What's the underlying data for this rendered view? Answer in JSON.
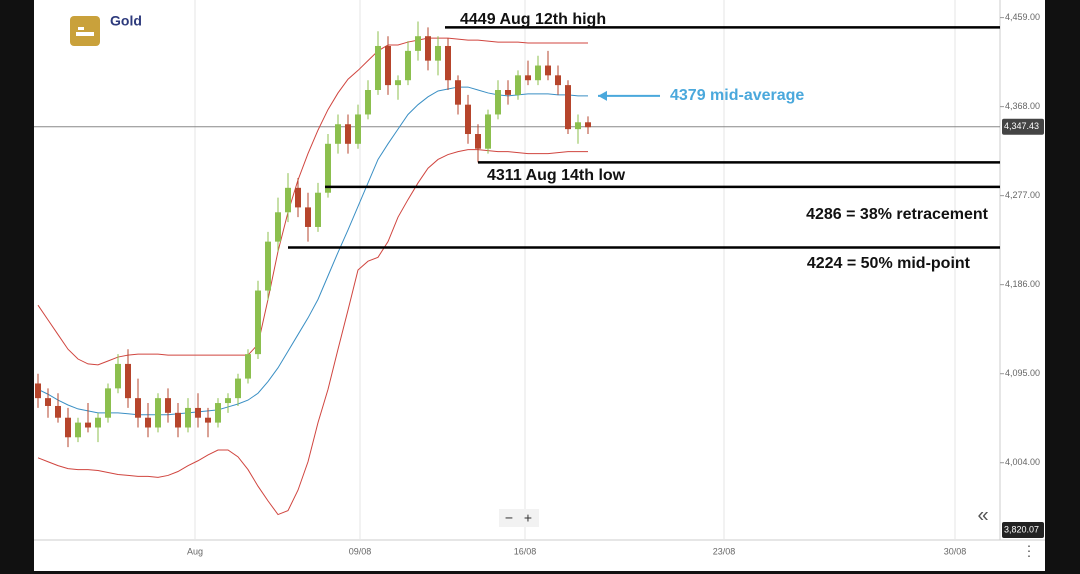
{
  "chart_data": {
    "type": "candlestick",
    "title": "Gold",
    "up_color": "#8cbf4e",
    "down_color": "#b6452c",
    "open": [
      4085,
      4070,
      4062,
      4050,
      4030,
      4045,
      4040,
      4050,
      4080,
      4105,
      4070,
      4050,
      4040,
      4070,
      4055,
      4040,
      4060,
      4050,
      4045,
      4065,
      4070,
      4090,
      4115,
      4180,
      4230,
      4260,
      4285,
      4265,
      4245,
      4280,
      4330,
      4350,
      4330,
      4360,
      4385,
      4430,
      4390,
      4395,
      4425,
      4440,
      4415,
      4430,
      4395,
      4370,
      4340,
      4325,
      4360,
      4385,
      4380,
      4400,
      4395,
      4410,
      4400,
      4390,
      4345,
      4352
    ],
    "high": [
      4095,
      4080,
      4075,
      4060,
      4050,
      4065,
      4055,
      4085,
      4115,
      4120,
      4090,
      4065,
      4075,
      4080,
      4065,
      4070,
      4075,
      4060,
      4070,
      4075,
      4095,
      4120,
      4190,
      4240,
      4275,
      4300,
      4295,
      4280,
      4290,
      4340,
      4360,
      4360,
      4370,
      4395,
      4445,
      4440,
      4400,
      4435,
      4455,
      4449,
      4440,
      4438,
      4400,
      4380,
      4350,
      4365,
      4395,
      4395,
      4405,
      4415,
      4420,
      4425,
      4410,
      4395,
      4360,
      4358
    ],
    "low": [
      4060,
      4050,
      4045,
      4020,
      4025,
      4035,
      4025,
      4045,
      4075,
      4060,
      4040,
      4030,
      4035,
      4045,
      4030,
      4035,
      4040,
      4030,
      4040,
      4055,
      4062,
      4085,
      4110,
      4170,
      4220,
      4250,
      4255,
      4230,
      4240,
      4275,
      4320,
      4320,
      4325,
      4355,
      4380,
      4380,
      4375,
      4390,
      4415,
      4405,
      4400,
      4385,
      4360,
      4330,
      4311,
      4320,
      4355,
      4370,
      4375,
      4390,
      4390,
      4395,
      4380,
      4340,
      4330,
      4340
    ],
    "close": [
      4070,
      4062,
      4050,
      4030,
      4045,
      4040,
      4050,
      4080,
      4105,
      4070,
      4050,
      4040,
      4070,
      4055,
      4040,
      4060,
      4050,
      4045,
      4065,
      4070,
      4090,
      4115,
      4180,
      4230,
      4260,
      4285,
      4265,
      4245,
      4280,
      4330,
      4350,
      4330,
      4360,
      4385,
      4430,
      4390,
      4395,
      4425,
      4440,
      4415,
      4430,
      4395,
      4370,
      4340,
      4325,
      4360,
      4385,
      4380,
      4400,
      4395,
      4410,
      4400,
      4390,
      4345,
      4352,
      4347
    ],
    "bands": [
      {
        "color": "#d0453f",
        "values": [
          4165,
          4150,
          4135,
          4120,
          4110,
          4105,
          4104,
          4108,
          4112,
          4114,
          4115,
          4115,
          4115,
          4114,
          4114,
          4114,
          4114,
          4114,
          4114,
          4114,
          4114,
          4114,
          4125,
          4171,
          4220,
          4260,
          4293,
          4320,
          4344,
          4365,
          4382,
          4396,
          4405,
          4415,
          4425,
          4431,
          4431,
          4434,
          4436,
          4438,
          4438,
          4438,
          4437,
          4436,
          4436,
          4435,
          4434,
          4434,
          4434,
          4433,
          4433,
          4433,
          4433,
          4433,
          4433,
          4433
        ]
      },
      {
        "color": "#3a8fc4",
        "values": [
          4079,
          4074,
          4068,
          4063,
          4059,
          4057,
          4055,
          4055,
          4055,
          4054,
          4053,
          4053,
          4053,
          4053,
          4054,
          4055,
          4056,
          4057,
          4058,
          4061,
          4064,
          4068,
          4075,
          4087,
          4101,
          4118,
          4135,
          4152,
          4171,
          4195,
          4219,
          4242,
          4266,
          4290,
          4314,
          4330,
          4345,
          4360,
          4370,
          4378,
          4384,
          4386,
          4388,
          4388,
          4385,
          4382,
          4380,
          4379,
          4380,
          4381,
          4381,
          4381,
          4380,
          4380,
          4379,
          4379
        ]
      },
      {
        "color": "#d0453f",
        "values": [
          4009,
          4005,
          4001,
          3998,
          3997,
          3997,
          3996,
          3994,
          3992,
          3991,
          3990,
          3990,
          3989,
          3991,
          3995,
          4001,
          4006,
          4012,
          4017,
          4017,
          4010,
          3997,
          3980,
          3965,
          3951,
          3955,
          3976,
          4005,
          4045,
          4079,
          4120,
          4160,
          4201,
          4210,
          4214,
          4230,
          4255,
          4273,
          4290,
          4305,
          4314,
          4319,
          4322,
          4324,
          4324,
          4323,
          4322,
          4322,
          4321,
          4320,
          4320,
          4320,
          4321,
          4322,
          4322,
          4322
        ]
      }
    ],
    "xlim": [
      -0.4,
      96.2
    ],
    "xticks": [
      {
        "value": 15.7,
        "label": "Aug"
      },
      {
        "value": 32.2,
        "label": "09/08"
      },
      {
        "value": 48.7,
        "label": "16/08"
      },
      {
        "value": 68.6,
        "label": "23/08"
      },
      {
        "value": 91.7,
        "label": "30/08"
      }
    ],
    "ylim": [
      3925,
      4477
    ],
    "yticks": [
      {
        "value": 4459,
        "label": "4,459.00"
      },
      {
        "value": 4368,
        "label": "4,368.00"
      },
      {
        "value": 4277,
        "label": "4,277.00"
      },
      {
        "value": 4186,
        "label": "4,186.00"
      },
      {
        "value": 4095,
        "label": "4,095.00"
      },
      {
        "value": 4004,
        "label": "4,004.00"
      }
    ],
    "grid": "x",
    "levels": [
      {
        "value": 4449,
        "label": "4449 Aug 12th high"
      },
      {
        "value": 4311,
        "label": "4311 Aug 14th low"
      },
      {
        "value": 4286,
        "label": "4286 = 38% retracement"
      },
      {
        "value": 4224,
        "label": "4224 = 50% mid-point"
      }
    ],
    "mid_average": {
      "value": 4379,
      "label": "4379 mid-average",
      "color": "#4aa8dc"
    },
    "last_price": {
      "value": 4347.43,
      "label": "4,347.43"
    },
    "bottom_tag": "3,820.07"
  }
}
